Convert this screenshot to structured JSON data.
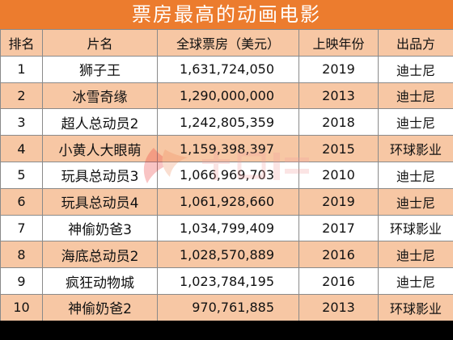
{
  "title": "票房最高的动画电影",
  "headers": [
    "排名",
    "片名",
    "全球票房（美元）",
    "上映年份",
    "出品方"
  ],
  "rows": [
    {
      "rank": "1",
      "title": "狮子王",
      "gross": "1,631,724,050",
      "year": "2019",
      "studio": "迪士尼"
    },
    {
      "rank": "2",
      "title": "冰雪奇缘",
      "gross": "1,290,000,000",
      "year": "2013",
      "studio": "迪士尼"
    },
    {
      "rank": "3",
      "title": "超人总动员2",
      "gross": "1,242,805,359",
      "year": "2018",
      "studio": "迪士尼"
    },
    {
      "rank": "4",
      "title": "小黄人大眼萌",
      "gross": "1,159,398,397",
      "year": "2015",
      "studio": "环球影业"
    },
    {
      "rank": "5",
      "title": "玩具总动员3",
      "gross": "1,066,969,703",
      "year": "2010",
      "studio": "迪士尼"
    },
    {
      "rank": "6",
      "title": "玩具总动员4",
      "gross": "1,061,928,660",
      "year": "2019",
      "studio": "迪士尼"
    },
    {
      "rank": "7",
      "title": "神偷奶爸3",
      "gross": "1,034,799,409",
      "year": "2017",
      "studio": "环球影业"
    },
    {
      "rank": "8",
      "title": "海底总动员2",
      "gross": "1,028,570,889",
      "year": "2016",
      "studio": "迪士尼"
    },
    {
      "rank": "9",
      "title": "疯狂动物城",
      "gross": "1,023,784,195",
      "year": "2016",
      "studio": "迪士尼"
    },
    {
      "rank": "10",
      "title": "神偷奶爸2",
      "gross": "970,761,885",
      "year": "2013",
      "studio": "环球影业"
    }
  ],
  "colors": {
    "title_bg": "#ec7c2e",
    "band_bg": "#f7c7a4",
    "watermark": "#ec2f2f"
  },
  "watermark_icon": "logo-watermark-icon"
}
